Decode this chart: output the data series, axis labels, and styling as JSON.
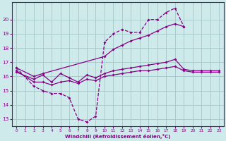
{
  "bg_color": "#ceeaea",
  "grid_color": "#aacccc",
  "line_color": "#880088",
  "xlabel": "Windchill (Refroidissement éolien,°C)",
  "xlim": [
    -0.5,
    23.5
  ],
  "ylim": [
    12.5,
    21.2
  ],
  "yticks": [
    13,
    14,
    15,
    16,
    17,
    18,
    19,
    20
  ],
  "xticks": [
    0,
    1,
    2,
    3,
    4,
    5,
    6,
    7,
    8,
    9,
    10,
    11,
    12,
    13,
    14,
    15,
    16,
    17,
    18,
    19,
    20,
    21,
    22,
    23
  ],
  "line1_x": [
    0,
    2,
    3,
    4,
    5,
    6,
    7,
    8,
    9,
    10,
    11,
    12,
    13,
    14,
    15,
    16,
    17,
    18,
    19
  ],
  "line1_y": [
    16.6,
    15.3,
    15.0,
    14.8,
    14.8,
    14.5,
    13.0,
    12.8,
    13.2,
    18.4,
    19.0,
    19.3,
    19.1,
    19.1,
    20.0,
    20.0,
    20.5,
    20.8,
    19.5
  ],
  "line2_x": [
    0,
    2,
    3,
    10,
    11,
    12,
    13,
    14,
    15,
    16,
    17,
    18,
    19
  ],
  "line2_y": [
    16.6,
    16.0,
    16.2,
    17.4,
    17.9,
    18.2,
    18.5,
    18.7,
    18.9,
    19.2,
    19.5,
    19.7,
    19.5
  ],
  "line3_x": [
    0,
    2,
    3,
    4,
    5,
    6,
    7,
    8,
    9,
    10,
    11,
    12,
    13,
    14,
    15,
    16,
    17,
    18,
    19,
    20,
    21,
    22,
    23
  ],
  "line3_y": [
    16.4,
    15.6,
    15.6,
    15.4,
    15.6,
    15.7,
    15.5,
    15.8,
    15.7,
    16.0,
    16.1,
    16.2,
    16.3,
    16.4,
    16.4,
    16.5,
    16.6,
    16.7,
    16.4,
    16.3,
    16.3,
    16.3,
    16.3
  ],
  "line4_x": [
    0,
    2,
    3,
    4,
    5,
    6,
    7,
    8,
    9,
    10,
    11,
    12,
    13,
    14,
    15,
    16,
    17,
    18,
    19,
    20,
    21,
    22,
    23
  ],
  "line4_y": [
    16.3,
    15.8,
    16.1,
    15.6,
    16.2,
    15.9,
    15.6,
    16.1,
    15.9,
    16.2,
    16.4,
    16.5,
    16.6,
    16.7,
    16.8,
    16.9,
    17.0,
    17.2,
    16.5,
    16.4,
    16.4,
    16.4,
    16.4
  ],
  "marker": "D",
  "markersize": 2.0,
  "linewidth": 0.9
}
